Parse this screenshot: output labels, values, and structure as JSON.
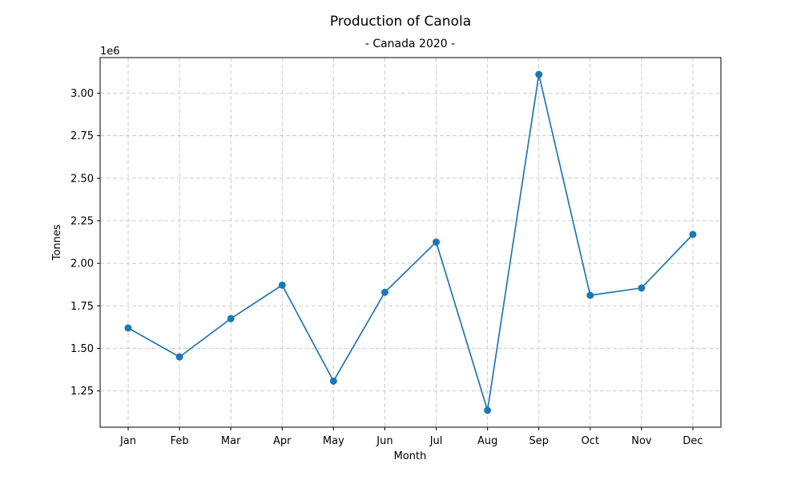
{
  "chart_data": {
    "type": "line",
    "title": "Production of Canola",
    "subtitle": "- Canada 2020 -",
    "xlabel": "Month",
    "ylabel": "Tonnes",
    "y_scale_label": "1e6",
    "categories": [
      "Jan",
      "Feb",
      "Mar",
      "Apr",
      "May",
      "Jun",
      "Jul",
      "Aug",
      "Sep",
      "Oct",
      "Nov",
      "Dec"
    ],
    "series": [
      {
        "values": [
          1620000,
          1450000,
          1675000,
          1872000,
          1308000,
          1830000,
          2125000,
          1136000,
          3110000,
          1812000,
          1855000,
          2170000
        ],
        "color": "#1f77b4",
        "marker": "circle"
      }
    ],
    "y_ticks": [
      1.25,
      1.5,
      1.75,
      2.0,
      2.25,
      2.5,
      2.75,
      3.0
    ],
    "y_tick_labels": [
      "1.25",
      "1.50",
      "1.75",
      "2.00",
      "2.25",
      "2.50",
      "2.75",
      "3.00"
    ],
    "y_tick_multiplier": 1000000,
    "ylim": [
      1037000,
      3209000
    ],
    "grid": true,
    "legend": "none"
  }
}
